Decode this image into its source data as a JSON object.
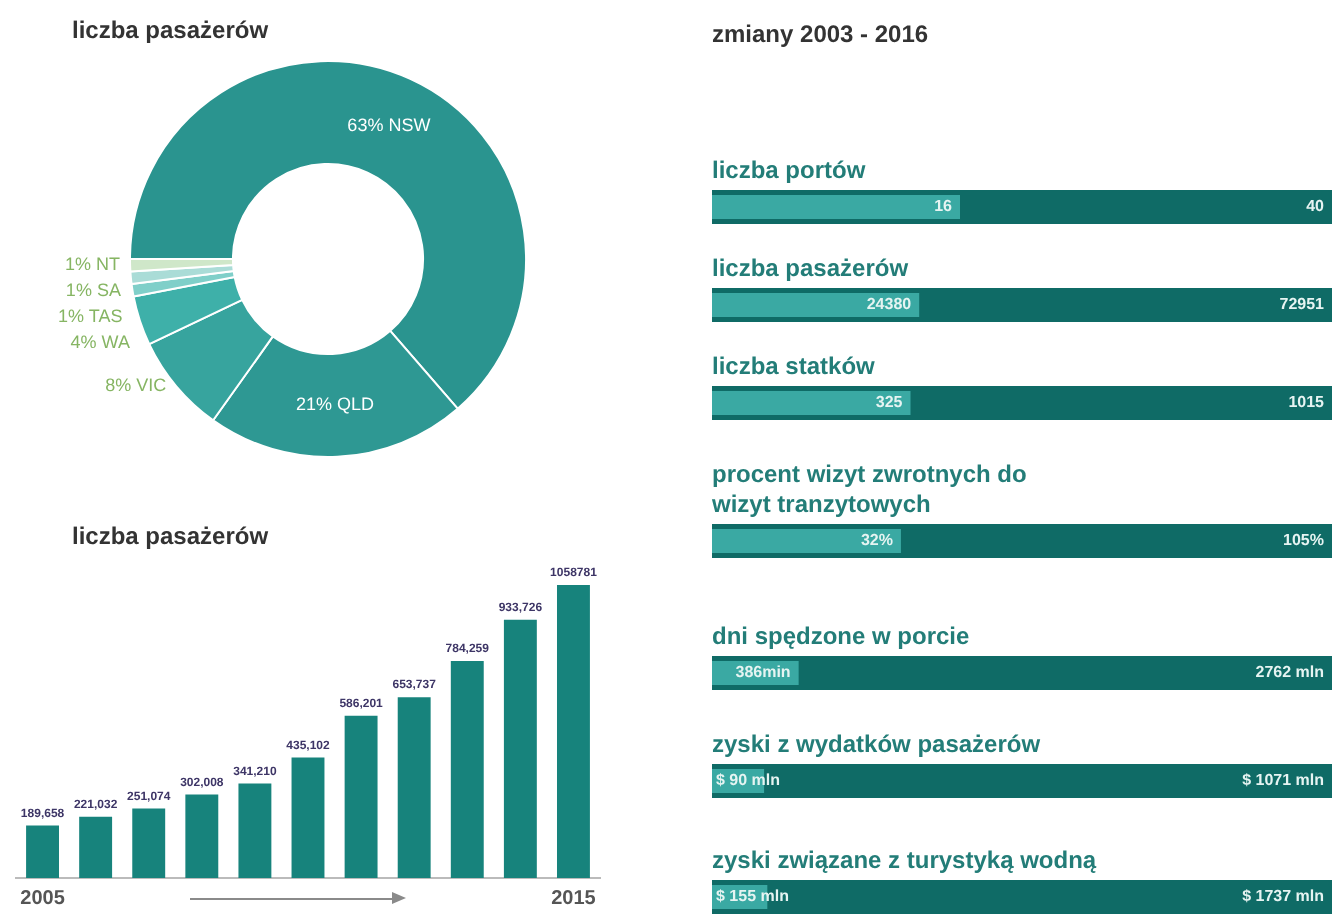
{
  "chart_data": [
    {
      "type": "donut",
      "title": "liczba pasażerów",
      "categories": [
        "NSW",
        "QLD",
        "VIC",
        "WA",
        "TAS",
        "SA",
        "NT"
      ],
      "values": [
        63,
        21,
        8,
        4,
        1,
        1,
        1
      ],
      "value_labels": [
        "63%",
        "21%",
        "8%",
        "4%",
        "1%",
        "1%",
        "1%"
      ],
      "colors": [
        "#2a948f",
        "#2e9893",
        "#37a49e",
        "#3eb0a9",
        "#7fcfc9",
        "#aadcd7",
        "#cfe7c9"
      ]
    },
    {
      "type": "bar",
      "title": "liczba pasażerów",
      "categories": [
        "2005",
        null,
        null,
        null,
        null,
        null,
        null,
        null,
        null,
        null,
        "2015"
      ],
      "values": [
        189658,
        221032,
        251074,
        302008,
        341210,
        435102,
        586201,
        653737,
        784259,
        933726,
        1058781
      ],
      "color": "#17837c",
      "value_labels": [
        "189,658",
        "221,032",
        "251,074",
        "302,008",
        "341,210",
        "435,102",
        "586,201",
        "653,737",
        "784,259",
        "933,726",
        "1058781"
      ],
      "tick_labels": "x"
    },
    {
      "type": "bar",
      "orientation": "horizontal",
      "title": "zmiany 2003 - 2016",
      "subtitle": "liczba portów",
      "categories": [
        null
      ],
      "data_labels": true,
      "tick_labels": false,
      "series": [
        {
          "color": "#3aa9a3",
          "values": [
            16
          ]
        },
        {
          "color": "#0f6b66",
          "values": [
            40
          ]
        }
      ]
    },
    {
      "type": "bar",
      "orientation": "horizontal",
      "title": "liczba pasażerów",
      "categories": [
        null
      ],
      "data_labels": true,
      "tick_labels": false,
      "series": [
        {
          "color": "#3aa9a3",
          "values": [
            24380
          ]
        },
        {
          "color": "#0f6b66",
          "values": [
            72951
          ]
        }
      ]
    },
    {
      "type": "bar",
      "orientation": "horizontal",
      "title": "liczba statków",
      "categories": [
        null
      ],
      "data_labels": true,
      "tick_labels": false,
      "series": [
        {
          "color": "#3aa9a3",
          "values": [
            325
          ]
        },
        {
          "color": "#0f6b66",
          "values": [
            1015
          ]
        }
      ]
    },
    {
      "type": "bar",
      "orientation": "horizontal",
      "title": "procent wizyt zwrotnych do wizyt tranzytowych",
      "categories": [
        null
      ],
      "tick_labels": false,
      "series": [
        {
          "color": "#3aa9a3",
          "values": [
            32
          ],
          "value_labels": [
            "32%"
          ]
        },
        {
          "color": "#0f6b66",
          "values": [
            105
          ],
          "value_labels": [
            "105%"
          ]
        }
      ]
    },
    {
      "type": "bar",
      "orientation": "horizontal",
      "title": "dni spędzone w porcie",
      "categories": [
        null
      ],
      "tick_labels": false,
      "series": [
        {
          "color": "#3aa9a3",
          "values": [
            386
          ],
          "value_labels": [
            "386min"
          ]
        },
        {
          "color": "#0f6b66",
          "values": [
            2762
          ],
          "value_labels": [
            "2762 mln"
          ]
        }
      ]
    },
    {
      "type": "bar",
      "orientation": "horizontal",
      "title": "zyski  z wydatków pasażerów",
      "categories": [
        null
      ],
      "tick_labels": false,
      "series": [
        {
          "color": "#3aa9a3",
          "values": [
            90
          ],
          "value_labels": [
            "$ 90 mln"
          ]
        },
        {
          "color": "#0f6b66",
          "values": [
            1071
          ],
          "value_labels": [
            "$ 1071 mln"
          ]
        }
      ]
    },
    {
      "type": "bar",
      "orientation": "horizontal",
      "title": "zyski związane z turystyką wodną",
      "categories": [
        null
      ],
      "tick_labels": false,
      "series": [
        {
          "color": "#3aa9a3",
          "values": [
            155
          ],
          "value_labels": [
            "$ 155 mln"
          ]
        },
        {
          "color": "#0f6b66",
          "values": [
            1737
          ],
          "value_labels": [
            "$ 1737 mln"
          ]
        }
      ]
    }
  ]
}
